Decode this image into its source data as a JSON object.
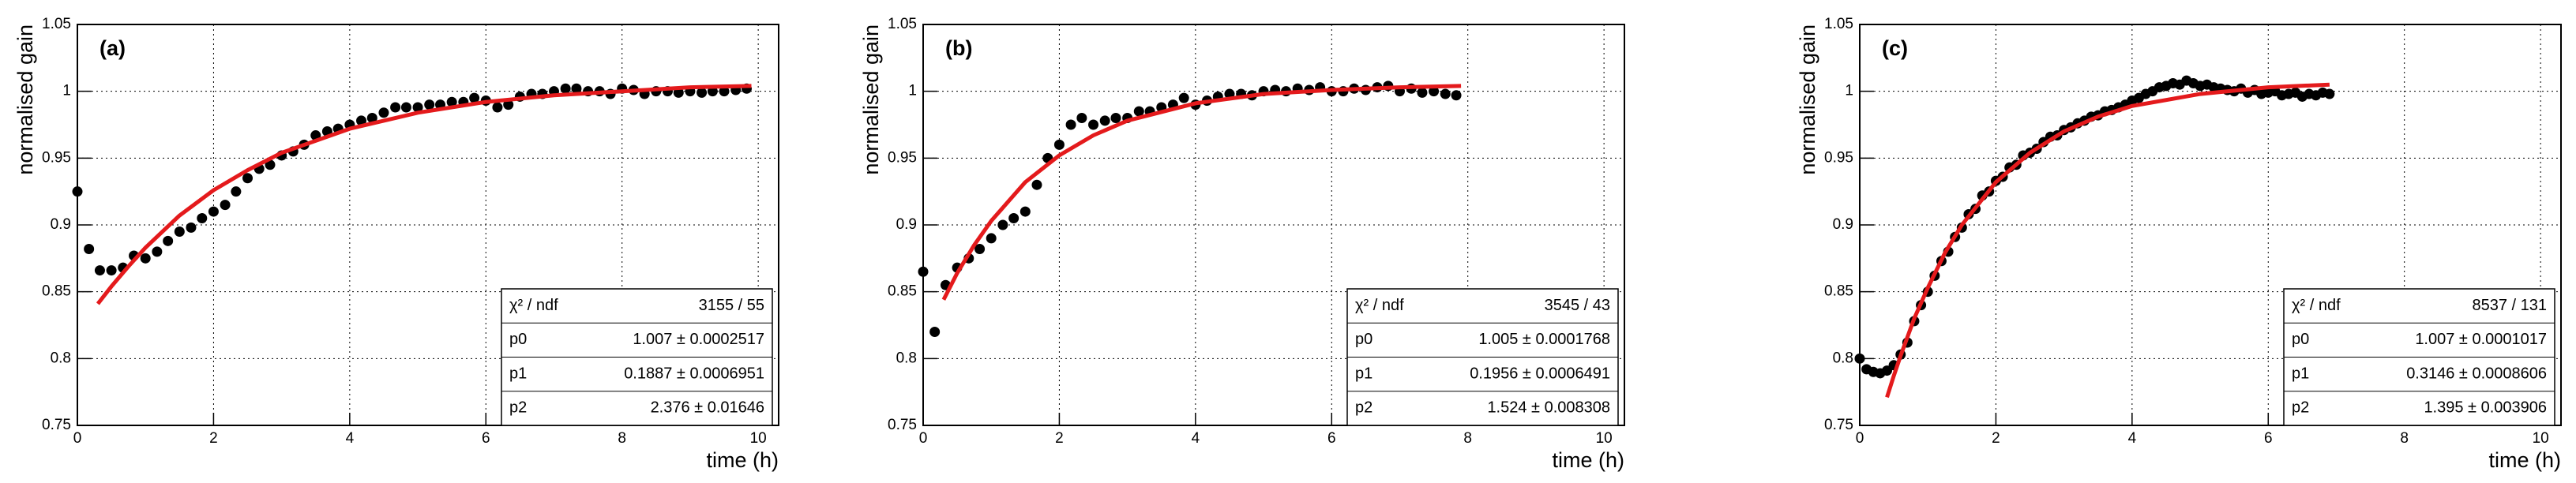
{
  "chart_data": [
    {
      "type": "scatter",
      "title": "(a)",
      "xlabel": "time (h)",
      "ylabel": "normalised gain",
      "xlim": [
        0,
        10.3
      ],
      "xticks": [
        0,
        2,
        4,
        6,
        8,
        10
      ],
      "ylim": [
        0.75,
        1.05
      ],
      "yticks": [
        0.75,
        0.8,
        0.85,
        0.9,
        0.95,
        1,
        1.05
      ],
      "grid": true,
      "series": [
        {
          "color": "#000000",
          "style": "markers",
          "x": [
            0,
            0.17,
            0.33,
            0.5,
            0.67,
            0.83,
            1,
            1.17,
            1.33,
            1.5,
            1.67,
            1.83,
            2,
            2.17,
            2.33,
            2.5,
            2.67,
            2.83,
            3,
            3.17,
            3.33,
            3.5,
            3.67,
            3.83,
            4,
            4.17,
            4.33,
            4.5,
            4.67,
            4.83,
            5,
            5.17,
            5.33,
            5.5,
            5.67,
            5.83,
            6,
            6.17,
            6.33,
            6.5,
            6.67,
            6.83,
            7,
            7.17,
            7.33,
            7.5,
            7.67,
            7.83,
            8,
            8.17,
            8.33,
            8.5,
            8.67,
            8.83,
            9,
            9.17,
            9.33,
            9.5,
            9.67,
            9.83
          ],
          "values": [
            0.925,
            0.882,
            0.866,
            0.866,
            0.868,
            0.877,
            0.875,
            0.88,
            0.888,
            0.895,
            0.898,
            0.905,
            0.91,
            0.915,
            0.925,
            0.935,
            0.942,
            0.945,
            0.952,
            0.955,
            0.96,
            0.967,
            0.97,
            0.972,
            0.975,
            0.978,
            0.98,
            0.984,
            0.988,
            0.988,
            0.988,
            0.99,
            0.99,
            0.992,
            0.992,
            0.995,
            0.993,
            0.988,
            0.99,
            0.996,
            0.998,
            0.998,
            1.0,
            1.002,
            1.002,
            1.0,
            1.0,
            0.998,
            1.002,
            1.001,
            0.998,
            1.0,
            1.0,
            0.999,
            1.0,
            0.999,
            1.0,
            1.0,
            1.001,
            1.002
          ]
        },
        {
          "color": "#e41a1c",
          "style": "line",
          "x": [
            0.3,
            0.5,
            0.75,
            1,
            1.5,
            2,
            2.5,
            3,
            4,
            5,
            6,
            7,
            8,
            9,
            9.9
          ],
          "values": [
            0.841,
            0.854,
            0.869,
            0.883,
            0.907,
            0.926,
            0.941,
            0.954,
            0.972,
            0.984,
            0.992,
            0.997,
            1.0,
            1.003,
            1.004
          ]
        }
      ],
      "stats": [
        [
          "χ² / ndf",
          "3155 / 55"
        ],
        [
          "p0",
          "1.007 ± 0.0002517"
        ],
        [
          "p1",
          "0.1887 ± 0.0006951"
        ],
        [
          "p2",
          "2.376 ± 0.01646"
        ]
      ]
    },
    {
      "type": "scatter",
      "title": "(b)",
      "xlabel": "time (h)",
      "ylabel": "normalised gain",
      "xlim": [
        0,
        10.3
      ],
      "xticks": [
        0,
        2,
        4,
        6,
        8,
        10
      ],
      "ylim": [
        0.75,
        1.05
      ],
      "yticks": [
        0.75,
        0.8,
        0.85,
        0.9,
        0.95,
        1,
        1.05
      ],
      "grid": true,
      "series": [
        {
          "color": "#000000",
          "style": "markers",
          "x": [
            0,
            0.17,
            0.33,
            0.5,
            0.67,
            0.83,
            1,
            1.17,
            1.33,
            1.5,
            1.67,
            1.83,
            2,
            2.17,
            2.33,
            2.5,
            2.67,
            2.83,
            3,
            3.17,
            3.33,
            3.5,
            3.67,
            3.83,
            4,
            4.17,
            4.33,
            4.5,
            4.67,
            4.83,
            5,
            5.17,
            5.33,
            5.5,
            5.67,
            5.83,
            6,
            6.17,
            6.33,
            6.5,
            6.67,
            6.83,
            7,
            7.17,
            7.33,
            7.5,
            7.67,
            7.83
          ],
          "values": [
            0.865,
            0.82,
            0.855,
            0.868,
            0.875,
            0.882,
            0.89,
            0.9,
            0.905,
            0.91,
            0.93,
            0.95,
            0.96,
            0.975,
            0.98,
            0.975,
            0.978,
            0.98,
            0.98,
            0.985,
            0.985,
            0.988,
            0.99,
            0.995,
            0.99,
            0.993,
            0.996,
            0.998,
            0.998,
            0.997,
            1.0,
            1.001,
            1.0,
            1.002,
            1.001,
            1.003,
            1.0,
            1.0,
            1.002,
            1.001,
            1.003,
            1.004,
            1.0,
            1.002,
            0.999,
            1.0,
            0.998,
            0.997
          ]
        },
        {
          "color": "#e41a1c",
          "style": "line",
          "x": [
            0.3,
            0.5,
            0.75,
            1,
            1.5,
            2,
            2.5,
            3,
            4,
            5,
            6,
            7,
            7.9
          ],
          "values": [
            0.844,
            0.864,
            0.885,
            0.903,
            0.932,
            0.952,
            0.967,
            0.978,
            0.991,
            0.998,
            1.001,
            1.003,
            1.004
          ]
        }
      ],
      "stats": [
        [
          "χ² / ndf",
          "3545 / 43"
        ],
        [
          "p0",
          "1.005 ± 0.0001768"
        ],
        [
          "p1",
          "0.1956 ± 0.0006491"
        ],
        [
          "p2",
          "1.524 ± 0.008308"
        ]
      ]
    },
    {
      "type": "scatter",
      "title": "(c)",
      "xlabel": "time (h)",
      "ylabel": "normalised gain",
      "xlim": [
        0,
        10.3
      ],
      "xticks": [
        0,
        2,
        4,
        6,
        8,
        10
      ],
      "ylim": [
        0.75,
        1.05
      ],
      "yticks": [
        0.75,
        0.8,
        0.85,
        0.9,
        0.95,
        1,
        1.05
      ],
      "grid": true,
      "series": [
        {
          "color": "#000000",
          "style": "markers",
          "x": [
            0,
            0.1,
            0.2,
            0.3,
            0.4,
            0.5,
            0.6,
            0.7,
            0.8,
            0.9,
            1,
            1.1,
            1.2,
            1.3,
            1.4,
            1.5,
            1.6,
            1.7,
            1.8,
            1.9,
            2,
            2.1,
            2.2,
            2.3,
            2.4,
            2.5,
            2.6,
            2.7,
            2.8,
            2.9,
            3,
            3.1,
            3.2,
            3.3,
            3.4,
            3.5,
            3.6,
            3.7,
            3.8,
            3.9,
            4,
            4.1,
            4.2,
            4.3,
            4.4,
            4.5,
            4.6,
            4.7,
            4.8,
            4.9,
            5,
            5.1,
            5.2,
            5.3,
            5.4,
            5.5,
            5.6,
            5.7,
            5.8,
            5.9,
            6,
            6.1,
            6.2,
            6.3,
            6.4,
            6.5,
            6.6,
            6.7,
            6.8,
            6.9
          ],
          "values": [
            0.8,
            0.792,
            0.79,
            0.789,
            0.791,
            0.795,
            0.803,
            0.812,
            0.828,
            0.84,
            0.85,
            0.862,
            0.873,
            0.88,
            0.891,
            0.898,
            0.908,
            0.912,
            0.922,
            0.925,
            0.933,
            0.936,
            0.943,
            0.945,
            0.952,
            0.954,
            0.957,
            0.962,
            0.966,
            0.967,
            0.971,
            0.973,
            0.976,
            0.978,
            0.981,
            0.982,
            0.985,
            0.986,
            0.988,
            0.99,
            0.993,
            0.995,
            0.998,
            1.0,
            1.003,
            1.004,
            1.006,
            1.005,
            1.008,
            1.006,
            1.004,
            1.005,
            1.003,
            1.002,
            1.001,
            1.0,
            1.002,
            0.999,
            1.001,
            0.998,
            0.999,
            1.0,
            0.997,
            0.998,
            0.999,
            0.996,
            0.998,
            0.997,
            0.999,
            0.998
          ]
        },
        {
          "color": "#e41a1c",
          "style": "line",
          "x": [
            0.4,
            0.5,
            0.6,
            0.8,
            1,
            1.25,
            1.5,
            2,
            2.5,
            3,
            3.5,
            4,
            5,
            6,
            6.9
          ],
          "values": [
            0.771,
            0.787,
            0.802,
            0.83,
            0.853,
            0.879,
            0.9,
            0.932,
            0.954,
            0.97,
            0.981,
            0.989,
            0.998,
            1.003,
            1.005
          ]
        }
      ],
      "stats": [
        [
          "χ² / ndf",
          "8537 / 131"
        ],
        [
          "p0",
          "1.007 ± 0.0001017"
        ],
        [
          "p1",
          "0.3146 ± 0.0008606"
        ],
        [
          "p2",
          "1.395 ± 0.003906"
        ]
      ]
    }
  ]
}
